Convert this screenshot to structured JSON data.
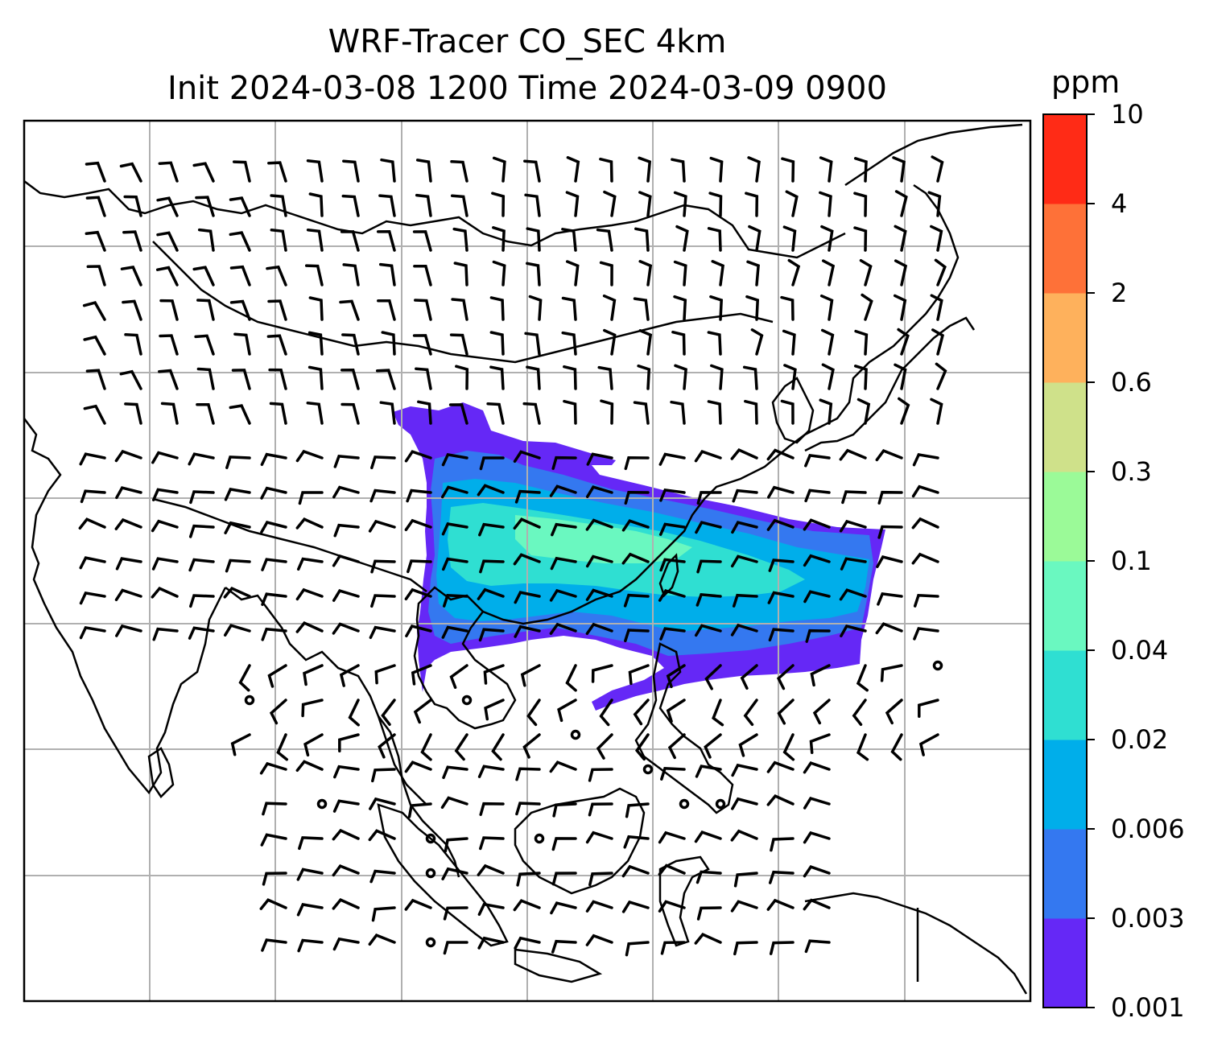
{
  "title": {
    "line1": "WRF-Tracer CO_SEC 4km",
    "line2": "Init 2024-03-08 1200 Time 2024-03-09 0900"
  },
  "colorbar": {
    "label": "ppm",
    "levels": [
      "0.001",
      "0.003",
      "0.006",
      "0.02",
      "0.04",
      "0.1",
      "0.3",
      "0.6",
      "2",
      "4",
      "10"
    ],
    "colors": [
      "#6528f6",
      "#3478f0",
      "#00aeea",
      "#2fdfd2",
      "#6af8c0",
      "#9bfa98",
      "#cfe18a",
      "#feb15c",
      "#fe7138",
      "#ff2b16"
    ]
  },
  "map": {
    "gridlines": true,
    "coastline_color": "#000000",
    "gridline_color": "#b0b0b0",
    "plume_colors": {
      "outer": "#6528f6",
      "mid": "#3478f0",
      "inner": "#00aeea",
      "core": "#2fdfd2",
      "peak": "#6af8c0"
    }
  }
}
